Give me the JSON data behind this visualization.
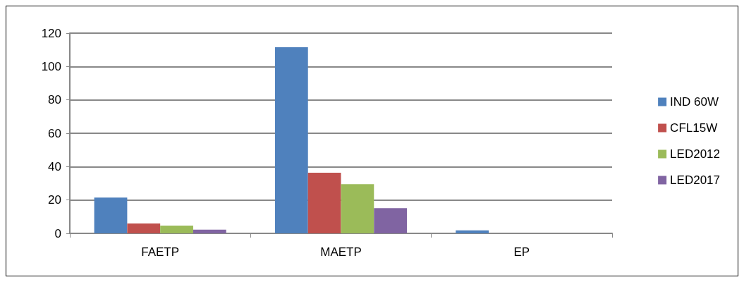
{
  "chart_data": {
    "type": "bar",
    "categories": [
      "FAETP",
      "MAETP",
      "EP"
    ],
    "series": [
      {
        "name": "IND 60W",
        "color": "#4f81bd",
        "values": [
          21.4,
          111.6,
          1.8
        ]
      },
      {
        "name": "CFL15W",
        "color": "#c0504d",
        "values": [
          5.9,
          36.3,
          null
        ]
      },
      {
        "name": "LED2012",
        "color": "#9bbb59",
        "values": [
          4.6,
          29.5,
          null
        ]
      },
      {
        "name": "LED2017",
        "color": "#8064a2",
        "values": [
          2.2,
          15.1,
          null
        ]
      }
    ],
    "ylim": [
      0,
      120
    ],
    "yticks": [
      0,
      20,
      40,
      60,
      80,
      100,
      120
    ],
    "grid": "y",
    "legend": "right"
  }
}
